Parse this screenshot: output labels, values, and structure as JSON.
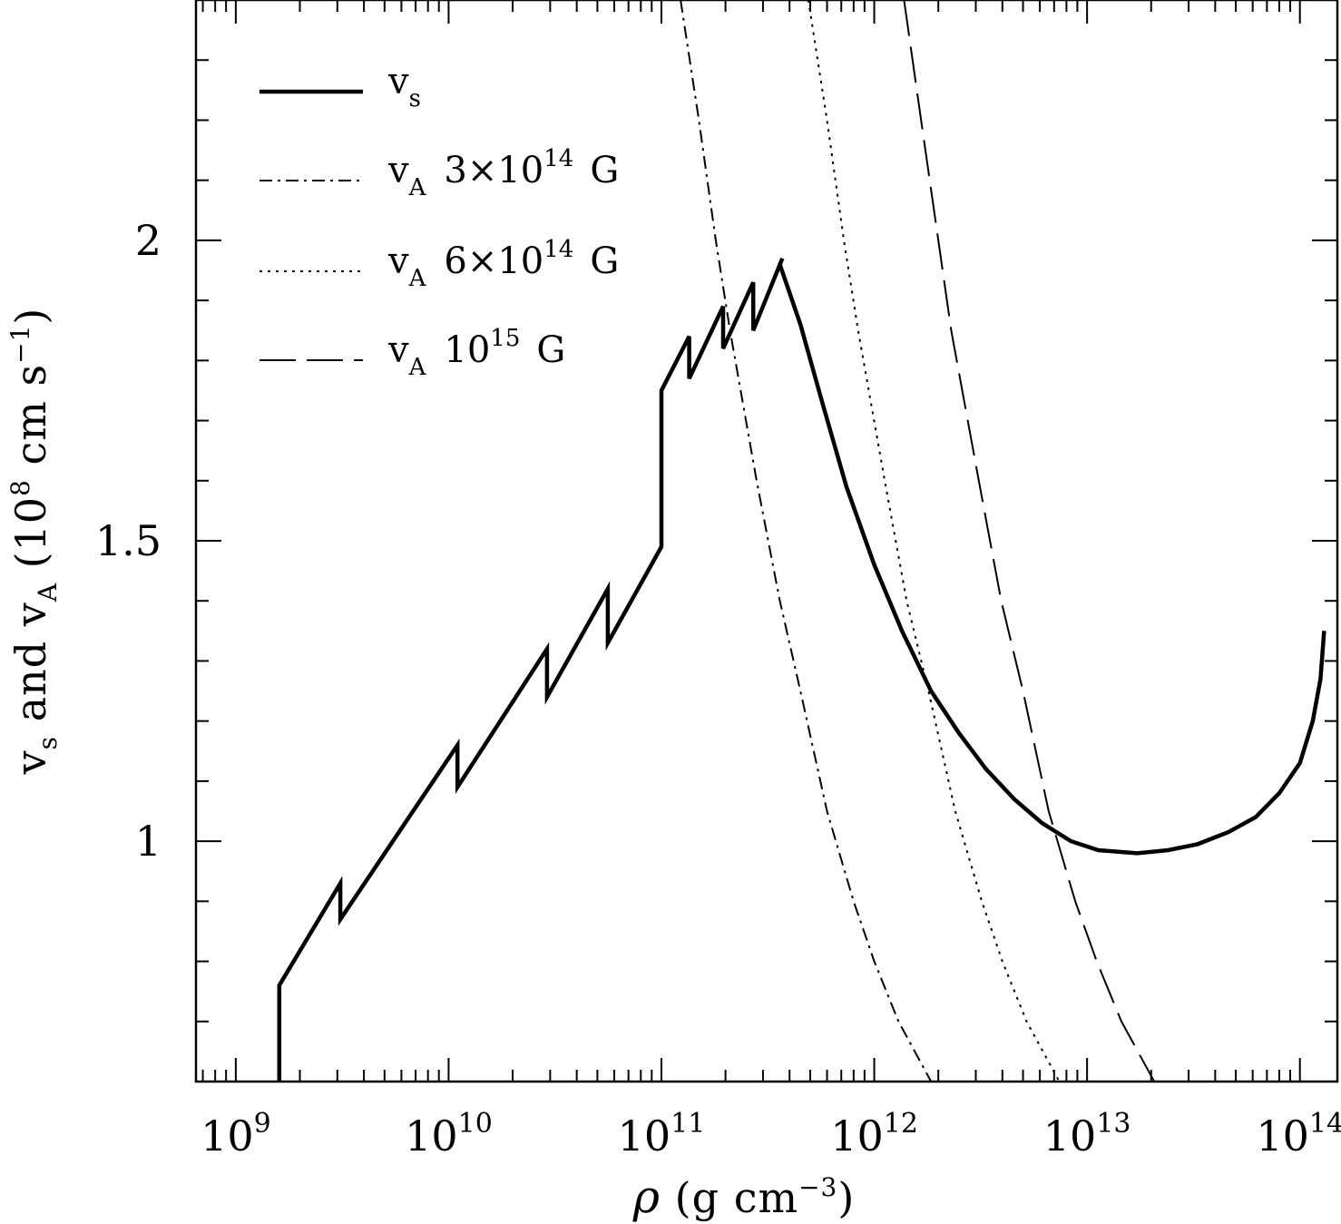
{
  "chart_data": {
    "type": "line",
    "xlabel": "ρ (g cm⁻³)",
    "ylabel": "vs and vA (10⁸ cm s⁻¹)",
    "xscale": "log",
    "xlim": [
      650000000.0,
      150000000000000.0
    ],
    "ylim": [
      0.6,
      2.4
    ],
    "x_tick_labels": [
      {
        "base": "10",
        "exp": "9",
        "value": 1000000000.0
      },
      {
        "base": "10",
        "exp": "10",
        "value": 10000000000.0
      },
      {
        "base": "10",
        "exp": "11",
        "value": 100000000000.0
      },
      {
        "base": "10",
        "exp": "12",
        "value": 1000000000000.0
      },
      {
        "base": "10",
        "exp": "13",
        "value": 10000000000000.0
      },
      {
        "base": "10",
        "exp": "14",
        "value": 100000000000000.0
      }
    ],
    "y_tick_labels": [
      {
        "label": "1",
        "value": 1.0
      },
      {
        "label": "1.5",
        "value": 1.5
      },
      {
        "label": "2",
        "value": 2.0
      }
    ],
    "legend_position": "top-left",
    "grid": false,
    "series": [
      {
        "name": "vs",
        "style": "solid-thick",
        "points": [
          [
            1600000000.0,
            0.6
          ],
          [
            1600000000.0,
            0.76
          ],
          [
            3100000000.0,
            0.93
          ],
          [
            3100000000.0,
            0.87
          ],
          [
            11000000000.0,
            1.16
          ],
          [
            11000000000.0,
            1.09
          ],
          [
            29000000000.0,
            1.32
          ],
          [
            29000000000.0,
            1.24
          ],
          [
            56000000000.0,
            1.42
          ],
          [
            56000000000.0,
            1.33
          ],
          [
            100000000000.0,
            1.49
          ],
          [
            100000000000.0,
            1.75
          ],
          [
            135000000000.0,
            1.84
          ],
          [
            135000000000.0,
            1.77
          ],
          [
            195000000000.0,
            1.89
          ],
          [
            195000000000.0,
            1.82
          ],
          [
            270000000000.0,
            1.93
          ],
          [
            270000000000.0,
            1.85
          ],
          [
            370000000000.0,
            1.97
          ],
          [
            360000000000.0,
            1.96
          ],
          [
            450000000000.0,
            1.86
          ],
          [
            570000000000.0,
            1.73
          ],
          [
            740000000000.0,
            1.59
          ],
          [
            1000000000000.0,
            1.46
          ],
          [
            1350000000000.0,
            1.35
          ],
          [
            1850000000000.0,
            1.25
          ],
          [
            2500000000000.0,
            1.18
          ],
          [
            3350000000000.0,
            1.12
          ],
          [
            4550000000000.0,
            1.07
          ],
          [
            6150000000000.0,
            1.03
          ],
          [
            8400000000000.0,
            1.0
          ],
          [
            11300000000000.0,
            0.985
          ],
          [
            17200000000000.0,
            0.98
          ],
          [
            24000000000000.0,
            0.985
          ],
          [
            33000000000000.0,
            0.995
          ],
          [
            46000000000000.0,
            1.015
          ],
          [
            62000000000000.0,
            1.04
          ],
          [
            80000000000000.0,
            1.08
          ],
          [
            100000000000000.0,
            1.13
          ],
          [
            115000000000000.0,
            1.2
          ],
          [
            125000000000000.0,
            1.27
          ],
          [
            130000000000000.0,
            1.35
          ]
        ]
      },
      {
        "name": "vA 3×10¹⁴ G",
        "legend": {
          "sym": "v",
          "sub": "A",
          "base": "3×10",
          "exp": "14",
          "unit": "G"
        },
        "style": "dash-dot",
        "points": [
          [
            123000000000.0,
            2.4
          ],
          [
            150000000000.0,
            2.2
          ],
          [
            180000000000.0,
            2.0
          ],
          [
            210000000000.0,
            1.85
          ],
          [
            280000000000.0,
            1.6
          ],
          [
            360000000000.0,
            1.4
          ],
          [
            450000000000.0,
            1.25
          ],
          [
            600000000000.0,
            1.05
          ],
          [
            800000000000.0,
            0.9
          ],
          [
            1000000000000.0,
            0.8
          ],
          [
            1300000000000.0,
            0.7
          ],
          [
            1850000000000.0,
            0.6
          ]
        ]
      },
      {
        "name": "vA 6×10¹⁴ G",
        "legend": {
          "sym": "v",
          "sub": "A",
          "base": "6×10",
          "exp": "14",
          "unit": "G"
        },
        "style": "dotted",
        "points": [
          [
            490000000000.0,
            2.4
          ],
          [
            600000000000.0,
            2.2
          ],
          [
            720000000000.0,
            2.0
          ],
          [
            840000000000.0,
            1.85
          ],
          [
            1120000000000.0,
            1.6
          ],
          [
            1420000000000.0,
            1.4
          ],
          [
            1800000000000.0,
            1.25
          ],
          [
            2400000000000.0,
            1.05
          ],
          [
            3200000000000.0,
            0.9
          ],
          [
            4000000000000.0,
            0.8
          ],
          [
            5200000000000.0,
            0.7
          ],
          [
            7400000000000.0,
            0.6
          ]
        ]
      },
      {
        "name": "vA 10¹⁵ G",
        "legend": {
          "sym": "v",
          "sub": "A",
          "base": "10",
          "exp": "15",
          "unit": "G"
        },
        "style": "long-dash",
        "points": [
          [
            1380000000000.0,
            2.4
          ],
          [
            1660000000000.0,
            2.2
          ],
          [
            2000000000000.0,
            2.0
          ],
          [
            2300000000000.0,
            1.85
          ],
          [
            3100000000000.0,
            1.6
          ],
          [
            3950000000000.0,
            1.4
          ],
          [
            5000000000000.0,
            1.25
          ],
          [
            6600000000000.0,
            1.05
          ],
          [
            8800000000000.0,
            0.9
          ],
          [
            11100000000000.0,
            0.8
          ],
          [
            14500000000000.0,
            0.7
          ],
          [
            20700000000000.0,
            0.6
          ]
        ]
      }
    ]
  }
}
